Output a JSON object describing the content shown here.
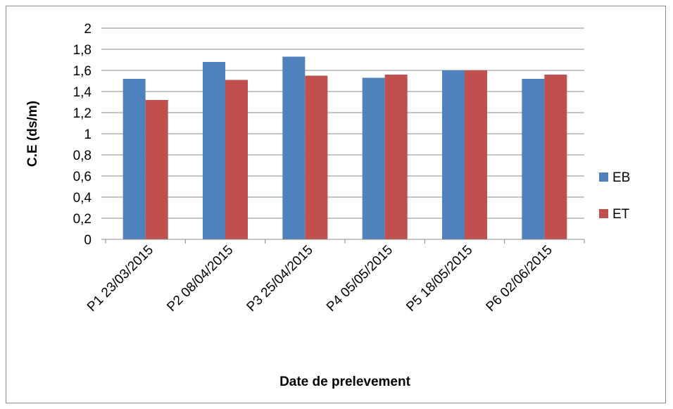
{
  "chart_data": {
    "type": "bar",
    "title": "",
    "xlabel": "Date de prelevement",
    "ylabel": "C.E  (ds/m)",
    "categories": [
      "P1 23/03/2015",
      "P2 08/04/2015",
      "P3 25/04/2015",
      "P4 05/05/2015",
      "P5 18/05/2015",
      "P6 02/06/2015"
    ],
    "series": [
      {
        "name": "EB",
        "color": "#4f81bd",
        "values": [
          1.52,
          1.68,
          1.73,
          1.53,
          1.6,
          1.52
        ]
      },
      {
        "name": "ET",
        "color": "#c0504d",
        "values": [
          1.32,
          1.51,
          1.55,
          1.56,
          1.6,
          1.56
        ]
      }
    ],
    "ylim": [
      0,
      2
    ],
    "yticks": [
      "0",
      "0,2",
      "0,4",
      "0,6",
      "0,8",
      "1",
      "1,2",
      "1,4",
      "1,6",
      "1,8",
      "2"
    ],
    "ytick_values": [
      0,
      0.2,
      0.4,
      0.6,
      0.8,
      1,
      1.2,
      1.4,
      1.6,
      1.8,
      2
    ],
    "grid": true,
    "legend_position": "right"
  }
}
